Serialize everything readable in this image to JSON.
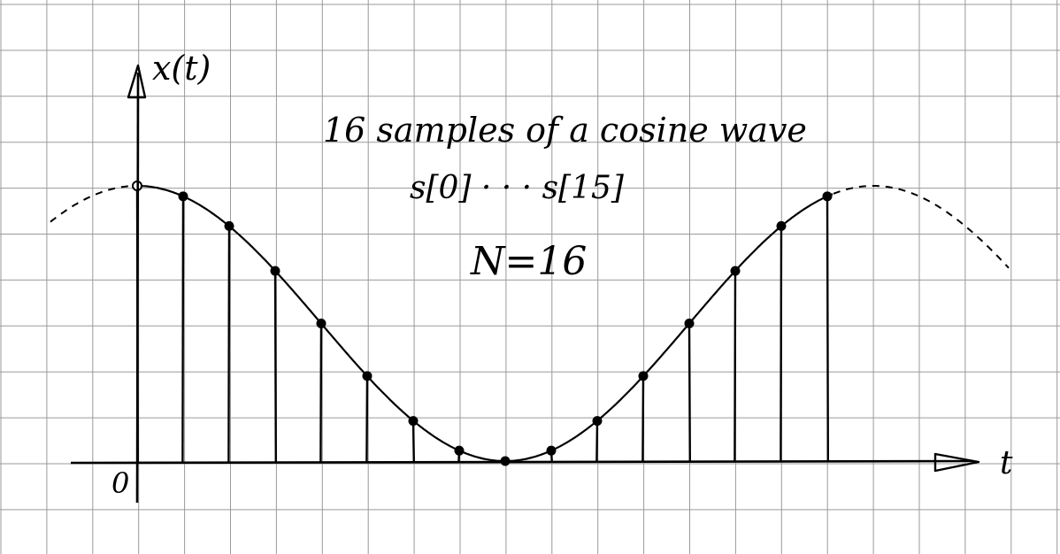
{
  "labels": {
    "y_axis": "x(t)",
    "x_axis": "t",
    "origin": "0",
    "title": "16 samples of a cosine wave",
    "sample_range": "s[0] · · · s[15]",
    "n_label": "N=16"
  },
  "colors": {
    "paper": "#ffffff",
    "grid": "#9a9a9a",
    "ink": "#000000"
  },
  "samples": {
    "count": 16,
    "index_start": 0,
    "index_end": 15,
    "values": [
      1.0,
      0.962,
      0.854,
      0.691,
      0.5,
      0.309,
      0.146,
      0.038,
      0.0,
      0.038,
      0.146,
      0.309,
      0.5,
      0.691,
      0.854,
      0.962
    ]
  }
}
